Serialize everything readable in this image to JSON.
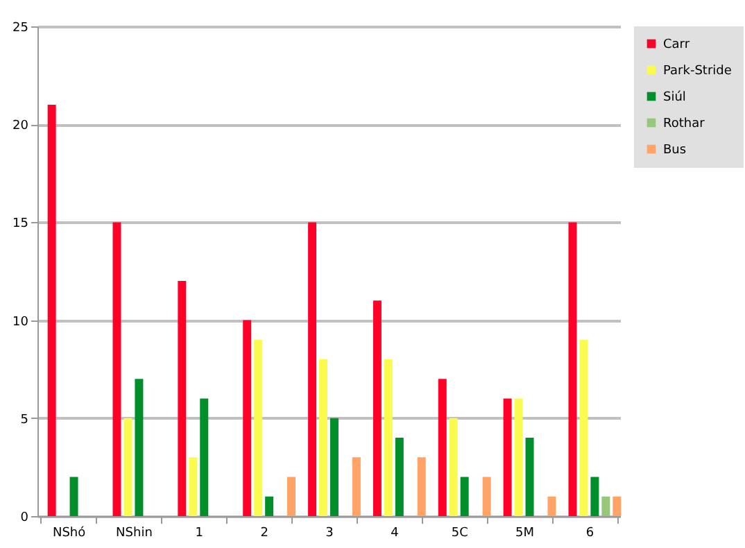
{
  "chart_data": {
    "type": "bar",
    "categories": [
      "NShó",
      "NShin",
      "1",
      "2",
      "3",
      "4",
      "5C",
      "5M",
      "6"
    ],
    "series": [
      {
        "name": "Carr",
        "color": "#ff0029",
        "values": [
          21,
          15,
          12,
          10,
          15,
          11,
          7,
          6,
          15
        ]
      },
      {
        "name": "Park-Stride",
        "color": "#fbfb4f",
        "values": [
          0,
          5,
          3,
          9,
          8,
          8,
          5,
          6,
          9
        ]
      },
      {
        "name": "Siúl",
        "color": "#008f2a",
        "values": [
          2,
          7,
          6,
          1,
          5,
          4,
          2,
          4,
          2
        ]
      },
      {
        "name": "Rothar",
        "color": "#97c77a",
        "values": [
          0,
          0,
          0,
          0,
          0,
          0,
          0,
          0,
          1
        ]
      },
      {
        "name": "Bus",
        "color": "#ffa366",
        "values": [
          0,
          0,
          0,
          2,
          3,
          3,
          2,
          1,
          1
        ]
      }
    ],
    "ylim": [
      0,
      25
    ],
    "yticks": [
      0,
      5,
      10,
      15,
      20,
      25
    ],
    "grid": "y",
    "legend": "right"
  }
}
